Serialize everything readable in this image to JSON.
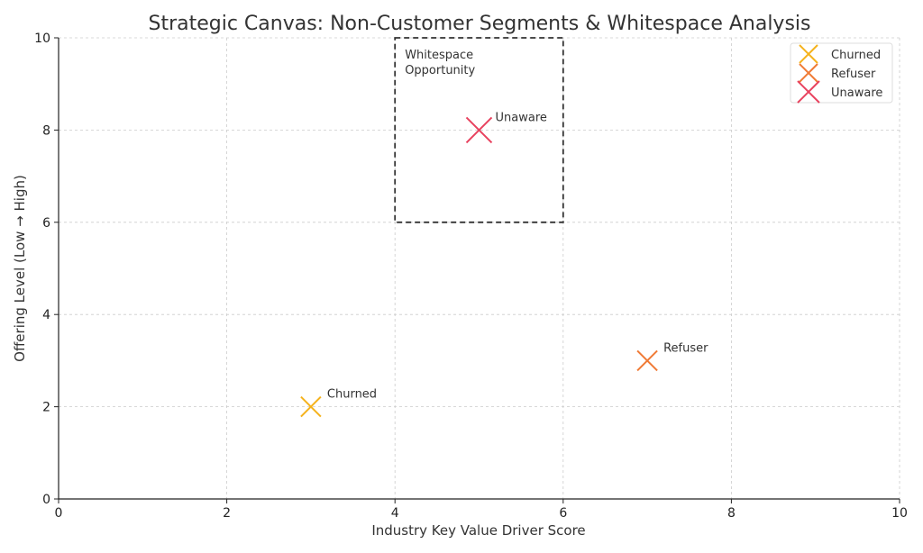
{
  "chart_data": {
    "type": "scatter",
    "title": "Strategic Canvas: Non-Customer Segments & Whitespace Analysis",
    "xlabel": "Industry Key Value Driver Score",
    "ylabel": "Offering Level (Low → High)",
    "xlim": [
      0,
      10
    ],
    "ylim": [
      0,
      10
    ],
    "xticks": [
      0,
      2,
      4,
      6,
      8,
      10
    ],
    "yticks": [
      0,
      2,
      4,
      6,
      8,
      10
    ],
    "grid": true,
    "legend_position": "top-right",
    "marker": "x",
    "series": [
      {
        "name": "Churned",
        "x": 3,
        "y": 2,
        "label": "Churned",
        "color": "#f5b21c"
      },
      {
        "name": "Refuser",
        "x": 7,
        "y": 3,
        "label": "Refuser",
        "color": "#f07a35"
      },
      {
        "name": "Unaware",
        "x": 5,
        "y": 8,
        "label": "Unaware",
        "color": "#e8435f"
      }
    ],
    "annotations": [
      {
        "type": "rectangle",
        "x0": 4,
        "y0": 6,
        "x1": 6,
        "y1": 10,
        "style": "dashed",
        "color": "#333333",
        "text": "Whitespace Opportunity",
        "text_lines": [
          "Whitespace",
          "Opportunity"
        ]
      }
    ]
  }
}
